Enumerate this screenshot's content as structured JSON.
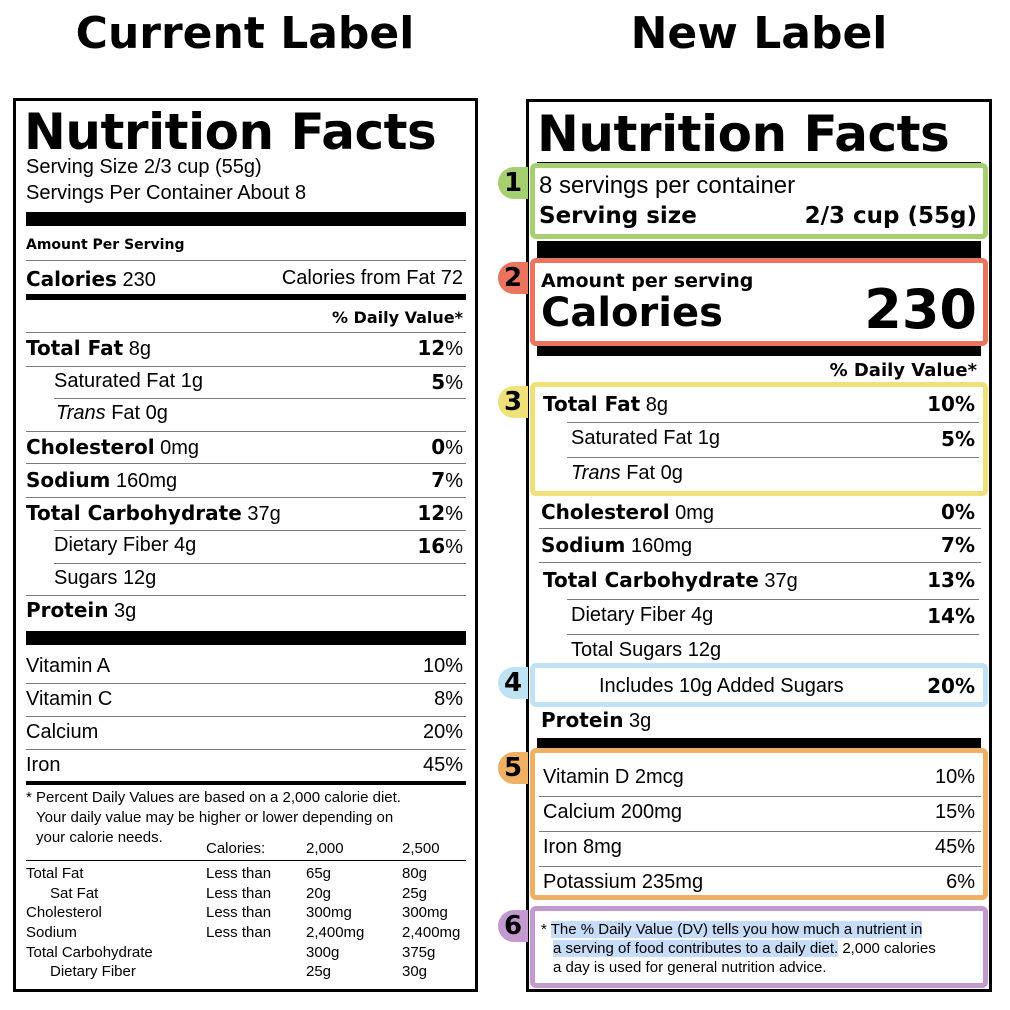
{
  "headings": {
    "current": "Current Label",
    "new": "New Label"
  },
  "colors": {
    "box1": "#a6cf6f",
    "box2": "#ea745e",
    "box3": "#f0e07a",
    "box4": "#bfe2f5",
    "box5": "#eeb163",
    "box6": "#c39ad0",
    "highlight": "#c7dcf6"
  },
  "current": {
    "title": "Nutrition Facts",
    "serving_size": "Serving Size 2/3 cup (55g)",
    "servings_per_container": "Servings Per Container About 8",
    "amount_per_serving": "Amount Per Serving",
    "calories_label": "Calories",
    "calories_value": "230",
    "calories_from_fat": "Calories from Fat 72",
    "dv_header": "% Daily Value*",
    "nutrients": [
      {
        "name": "Total Fat",
        "amount": "8g",
        "dv_num": "12",
        "dv_pct": "%"
      },
      {
        "name": "Saturated Fat",
        "amount": "1g",
        "dv_num": "5",
        "dv_pct": "%"
      },
      {
        "name_italic": "Trans",
        "name": "Fat",
        "amount": "0g"
      },
      {
        "name": "Cholesterol",
        "amount": "0mg",
        "dv_num": "0",
        "dv_pct": "%"
      },
      {
        "name": "Sodium",
        "amount": "160mg",
        "dv_num": "7",
        "dv_pct": "%"
      },
      {
        "name": "Total Carbohydrate",
        "amount": "37g",
        "dv_num": "12",
        "dv_pct": "%"
      },
      {
        "name": "Dietary Fiber",
        "amount": "4g",
        "dv_num": "16",
        "dv_pct": "%"
      },
      {
        "name": "Sugars",
        "amount": "12g"
      },
      {
        "name": "Protein",
        "amount": "3g"
      }
    ],
    "vitamins": [
      {
        "name": "Vitamin A",
        "dv": "10%"
      },
      {
        "name": "Vitamin C",
        "dv": "8%"
      },
      {
        "name": "Calcium",
        "dv": "20%"
      },
      {
        "name": "Iron",
        "dv": "45%"
      }
    ],
    "footnote": [
      "* Percent Daily Values are based on a 2,000 calorie diet.",
      "Your daily value may be higher or lower depending on",
      "your calorie needs."
    ],
    "footnote_table": {
      "header": [
        "Calories:",
        "2,000",
        "2,500"
      ],
      "rows": [
        [
          "Total Fat",
          "Less than",
          "65g",
          "80g"
        ],
        [
          "Sat Fat",
          "Less than",
          "20g",
          "25g"
        ],
        [
          "Cholesterol",
          "Less than",
          "300mg",
          "300mg"
        ],
        [
          "Sodium",
          "Less than",
          "2,400mg",
          "2,400mg"
        ],
        [
          "Total Carbohydrate",
          "",
          "300g",
          "375g"
        ],
        [
          "Dietary Fiber",
          "",
          "25g",
          "30g"
        ]
      ]
    }
  },
  "new": {
    "title": "Nutrition Facts",
    "servings_per_container": "8 servings per container",
    "serving_size_label": "Serving size",
    "serving_size_value": "2/3 cup (55g)",
    "amount_per_serving": "Amount per serving",
    "calories_label": "Calories",
    "calories_value": "230",
    "dv_header": "% Daily Value*",
    "nutrients": [
      {
        "name": "Total Fat",
        "amount": "8g",
        "dv": "10%"
      },
      {
        "name": "Saturated Fat",
        "amount": "1g",
        "dv": "5%"
      },
      {
        "name_italic": "Trans",
        "name": "Fat",
        "amount": "0g"
      },
      {
        "name": "Cholesterol",
        "amount": "0mg",
        "dv": "0%"
      },
      {
        "name": "Sodium",
        "amount": "160mg",
        "dv": "7%"
      },
      {
        "name": "Total Carbohydrate",
        "amount": "37g",
        "dv": "13%"
      },
      {
        "name": "Dietary Fiber",
        "amount": "4g",
        "dv": "14%"
      },
      {
        "name": "Total Sugars",
        "amount": "12g"
      },
      {
        "name": "Includes 10g Added Sugars",
        "dv": "20%"
      },
      {
        "name": "Protein",
        "amount": "3g"
      }
    ],
    "vitamins": [
      {
        "name": "Vitamin D 2mcg",
        "dv": "10%"
      },
      {
        "name": "Calcium 200mg",
        "dv": "15%"
      },
      {
        "name": "Iron 8mg",
        "dv": "45%"
      },
      {
        "name": "Potassium 235mg",
        "dv": "6%"
      }
    ],
    "footnote": {
      "star": "*",
      "highlighted_1": "The % Daily Value (DV) tells you how much a nutrient in",
      "highlighted_2": "a serving of food contributes to a daily diet.",
      "rest_2": " 2,000 calories",
      "line_3": "a day is used for general nutrition advice."
    },
    "markers": [
      "1",
      "2",
      "3",
      "4",
      "5",
      "6"
    ]
  }
}
